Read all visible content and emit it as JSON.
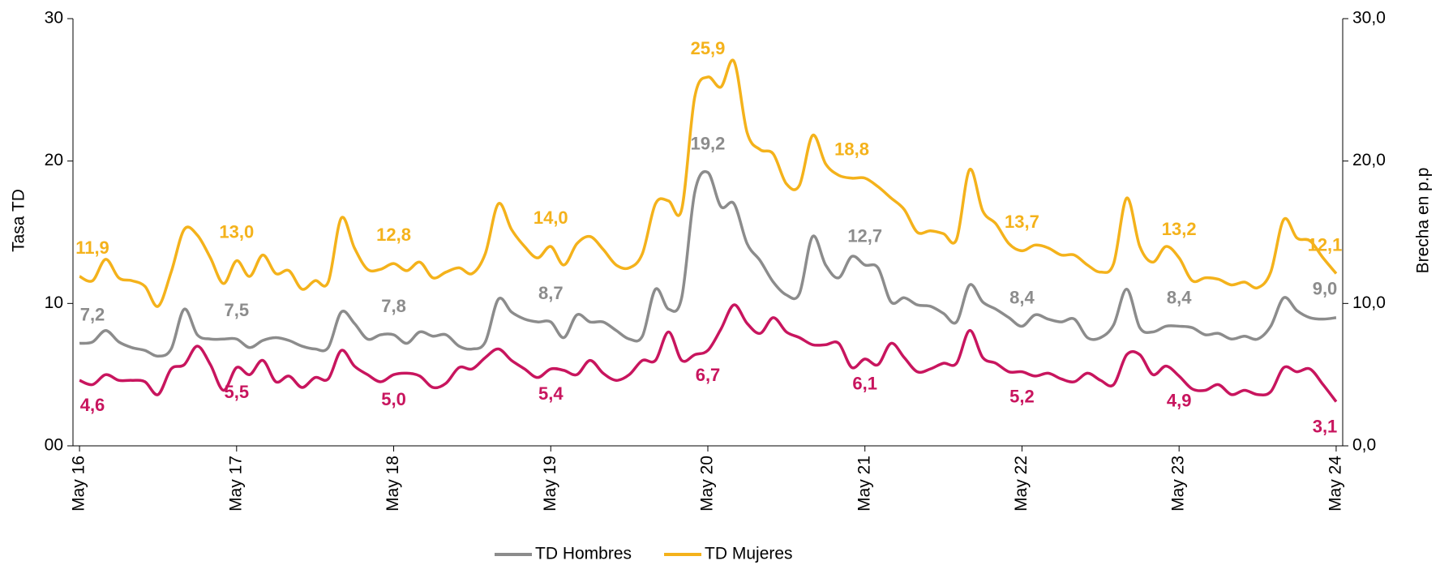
{
  "chart_data": {
    "type": "line",
    "ylabel": "Tasa  TD",
    "y2label": "Brecha en p.p",
    "ylim": [
      0,
      30
    ],
    "yticks": [
      {
        "value": 0,
        "label": "00"
      },
      10,
      20,
      30
    ],
    "y2lim": [
      0,
      30
    ],
    "y2ticks": [
      {
        "value": 0,
        "label": "0,0"
      },
      {
        "value": 10,
        "label": "10,0"
      },
      {
        "value": 20,
        "label": "20,0"
      },
      {
        "value": 30,
        "label": "30,0"
      }
    ],
    "categories": [
      "May 16",
      null,
      null,
      null,
      null,
      null,
      null,
      null,
      null,
      null,
      null,
      null,
      "May 17",
      null,
      null,
      null,
      null,
      null,
      null,
      null,
      null,
      null,
      null,
      null,
      "May 18",
      null,
      null,
      null,
      null,
      null,
      null,
      null,
      null,
      null,
      null,
      null,
      "May 19",
      null,
      null,
      null,
      null,
      null,
      null,
      null,
      null,
      null,
      null,
      null,
      "May 20",
      null,
      null,
      null,
      null,
      null,
      null,
      null,
      null,
      null,
      null,
      null,
      "May 21",
      null,
      null,
      null,
      null,
      null,
      null,
      null,
      null,
      null,
      null,
      null,
      "May 22",
      null,
      null,
      null,
      null,
      null,
      null,
      null,
      null,
      null,
      null,
      null,
      "May 23",
      null,
      null,
      null,
      null,
      null,
      null,
      null,
      null,
      null,
      null,
      null,
      "May 24"
    ],
    "series": [
      {
        "name": "TD Hombres",
        "color": "#8c8c8c",
        "values": [
          7.2,
          7.3,
          8.1,
          7.3,
          6.9,
          6.7,
          6.3,
          6.8,
          9.6,
          7.8,
          7.5,
          7.5,
          7.5,
          6.9,
          7.4,
          7.6,
          7.4,
          7.0,
          6.8,
          6.9,
          9.4,
          8.6,
          7.5,
          7.8,
          7.8,
          7.2,
          8.0,
          7.7,
          7.8,
          7.0,
          6.8,
          7.3,
          10.3,
          9.4,
          8.9,
          8.7,
          8.7,
          7.6,
          9.2,
          8.7,
          8.7,
          8.1,
          7.5,
          7.7,
          11.0,
          9.6,
          10.4,
          17.8,
          19.2,
          16.8,
          17.0,
          14.2,
          13.0,
          11.5,
          10.6,
          10.7,
          14.7,
          12.7,
          11.8,
          13.3,
          12.7,
          12.5,
          10.1,
          10.4,
          9.9,
          9.8,
          9.3,
          8.7,
          11.3,
          10.1,
          9.6,
          9.0,
          8.4,
          9.2,
          8.9,
          8.7,
          8.9,
          7.6,
          7.6,
          8.5,
          11.0,
          8.3,
          8.0,
          8.4,
          8.4,
          8.3,
          7.8,
          7.9,
          7.5,
          7.7,
          7.5,
          8.4,
          10.4,
          9.5,
          9.0,
          8.9,
          9.0
        ],
        "value_labels": [
          "7,2",
          null,
          null,
          null,
          null,
          null,
          null,
          null,
          null,
          null,
          null,
          null,
          "7,5",
          null,
          null,
          null,
          null,
          null,
          null,
          null,
          null,
          null,
          null,
          null,
          "7,8",
          null,
          null,
          null,
          null,
          null,
          null,
          null,
          null,
          null,
          null,
          null,
          "8,7",
          null,
          null,
          null,
          null,
          null,
          null,
          null,
          null,
          null,
          null,
          null,
          "19,2",
          null,
          null,
          null,
          null,
          null,
          null,
          null,
          null,
          null,
          null,
          null,
          "12,7",
          null,
          null,
          null,
          null,
          null,
          null,
          null,
          null,
          null,
          null,
          null,
          "8,4",
          null,
          null,
          null,
          null,
          null,
          null,
          null,
          null,
          null,
          null,
          null,
          "8,4",
          null,
          null,
          null,
          null,
          null,
          null,
          null,
          null,
          null,
          null,
          null,
          "9,0"
        ]
      },
      {
        "name": "TD Mujeres",
        "color": "#f4b21b",
        "values": [
          11.9,
          11.6,
          13.1,
          11.8,
          11.6,
          11.2,
          9.8,
          12.2,
          15.2,
          14.8,
          13.2,
          11.4,
          13.0,
          11.9,
          13.4,
          12.1,
          12.3,
          11.0,
          11.6,
          11.5,
          16.0,
          13.9,
          12.4,
          12.4,
          12.8,
          12.3,
          12.9,
          11.8,
          12.2,
          12.5,
          12.1,
          13.5,
          17.0,
          15.2,
          14.0,
          13.2,
          14.0,
          12.7,
          14.2,
          14.7,
          13.8,
          12.7,
          12.5,
          13.5,
          17.0,
          17.2,
          16.6,
          24.5,
          25.9,
          25.2,
          27.0,
          22.0,
          20.8,
          20.5,
          18.4,
          18.3,
          21.8,
          19.8,
          19.0,
          18.8,
          18.8,
          18.2,
          17.4,
          16.6,
          15.0,
          15.1,
          14.9,
          14.5,
          19.4,
          16.5,
          15.6,
          14.2,
          13.7,
          14.1,
          13.9,
          13.4,
          13.4,
          12.7,
          12.2,
          12.8,
          17.4,
          14.0,
          12.9,
          14.0,
          13.2,
          11.6,
          11.8,
          11.7,
          11.3,
          11.5,
          11.1,
          12.2,
          15.9,
          14.6,
          14.4,
          13.2,
          12.1
        ],
        "value_labels": [
          "11,9",
          null,
          null,
          null,
          null,
          null,
          null,
          null,
          null,
          null,
          null,
          null,
          "13,0",
          null,
          null,
          null,
          null,
          null,
          null,
          null,
          null,
          null,
          null,
          null,
          "12,8",
          null,
          null,
          null,
          null,
          null,
          null,
          null,
          null,
          null,
          null,
          null,
          "14,0",
          null,
          null,
          null,
          null,
          null,
          null,
          null,
          null,
          null,
          null,
          null,
          "25,9",
          null,
          null,
          null,
          null,
          null,
          null,
          null,
          null,
          null,
          null,
          "18,8",
          null,
          null,
          null,
          null,
          null,
          null,
          null,
          null,
          null,
          null,
          null,
          null,
          "13,7",
          null,
          null,
          null,
          null,
          null,
          null,
          null,
          null,
          null,
          null,
          null,
          "13,2",
          null,
          null,
          null,
          null,
          null,
          null,
          null,
          null,
          null,
          null,
          null,
          "12,1"
        ]
      },
      {
        "color": "#c8155e",
        "axis": "y2",
        "values": [
          4.6,
          4.3,
          5.0,
          4.6,
          4.6,
          4.5,
          3.6,
          5.4,
          5.7,
          7.0,
          5.7,
          3.9,
          5.5,
          5.0,
          6.0,
          4.5,
          4.9,
          4.1,
          4.8,
          4.7,
          6.7,
          5.6,
          5.0,
          4.5,
          5.0,
          5.1,
          4.9,
          4.1,
          4.4,
          5.5,
          5.4,
          6.2,
          6.8,
          6.0,
          5.4,
          4.8,
          5.4,
          5.3,
          5.0,
          6.0,
          5.1,
          4.6,
          5.0,
          6.0,
          6.0,
          8.0,
          6.0,
          6.4,
          6.7,
          8.2,
          9.9,
          8.6,
          7.9,
          9.0,
          8.0,
          7.6,
          7.1,
          7.1,
          7.2,
          5.5,
          6.1,
          5.7,
          7.2,
          6.2,
          5.2,
          5.4,
          5.8,
          5.8,
          8.1,
          6.2,
          5.8,
          5.2,
          5.2,
          4.9,
          5.1,
          4.7,
          4.5,
          5.1,
          4.6,
          4.3,
          6.4,
          6.4,
          5.0,
          5.6,
          4.9,
          4.0,
          3.9,
          4.3,
          3.6,
          3.9,
          3.6,
          3.8,
          5.5,
          5.2,
          5.4,
          4.3,
          3.1
        ],
        "value_labels": [
          "4,6",
          null,
          null,
          null,
          null,
          null,
          null,
          null,
          null,
          null,
          null,
          null,
          "5,5",
          null,
          null,
          null,
          null,
          null,
          null,
          null,
          null,
          null,
          null,
          null,
          "5,0",
          null,
          null,
          null,
          null,
          null,
          null,
          null,
          null,
          null,
          null,
          null,
          "5,4",
          null,
          null,
          null,
          null,
          null,
          null,
          null,
          null,
          null,
          null,
          null,
          "6,7",
          null,
          null,
          null,
          null,
          null,
          null,
          null,
          null,
          null,
          null,
          null,
          "6,1",
          null,
          null,
          null,
          null,
          null,
          null,
          null,
          null,
          null,
          null,
          null,
          "5,2",
          null,
          null,
          null,
          null,
          null,
          null,
          null,
          null,
          null,
          null,
          null,
          "4,9",
          null,
          null,
          null,
          null,
          null,
          null,
          null,
          null,
          null,
          null,
          null,
          "3,1"
        ]
      }
    ],
    "legend": "bottom"
  }
}
